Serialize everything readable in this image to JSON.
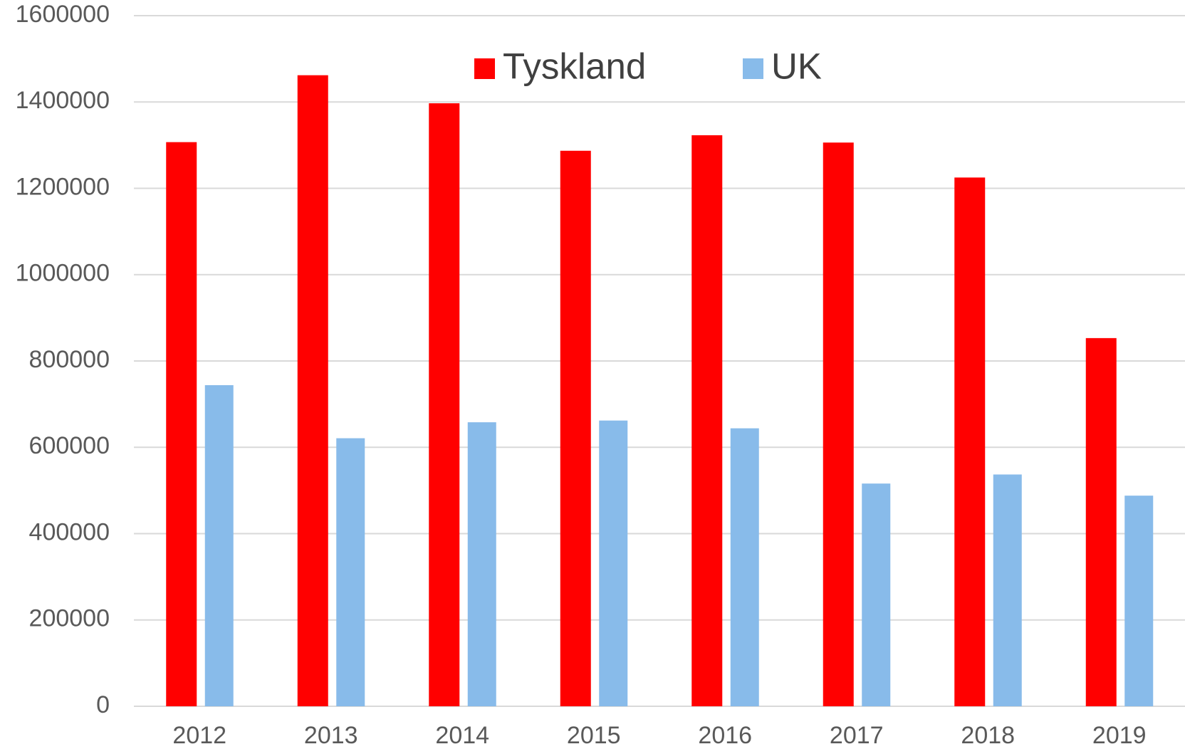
{
  "chart_data": {
    "type": "bar",
    "categories": [
      "2012",
      "2013",
      "2014",
      "2015",
      "2016",
      "2017",
      "2018",
      "2019"
    ],
    "series": [
      {
        "name": "Tyskland",
        "color": "#ff0000",
        "values": [
          1307000,
          1462000,
          1397000,
          1287000,
          1323000,
          1306000,
          1225000,
          853000
        ]
      },
      {
        "name": "UK",
        "color": "#88bbea",
        "values": [
          744000,
          621000,
          658000,
          662000,
          644000,
          516000,
          537000,
          488000
        ]
      }
    ],
    "ylim": [
      0,
      1600000
    ],
    "yticks": [
      0,
      200000,
      400000,
      600000,
      800000,
      1000000,
      1200000,
      1400000,
      1600000
    ],
    "grid": true
  }
}
